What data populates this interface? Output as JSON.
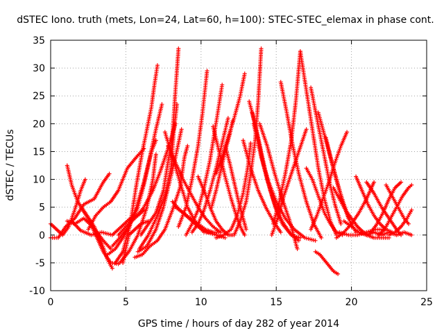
{
  "chart_data": {
    "type": "scatter",
    "title": "dSTEC Iono. truth (mets, Lon=24, Lat=60, h=100): STEC-STEC_elemax in phase cont.",
    "xlabel": "GPS time / hours of day 282 of year 2014",
    "ylabel": "dSTEC  / TECUs",
    "xlim": [
      0,
      25
    ],
    "ylim": [
      -10,
      35
    ],
    "xticks": [
      "0",
      "5",
      "10",
      "15",
      "20",
      "25"
    ],
    "yticks": [
      "-10",
      "-5",
      "0",
      "5",
      "10",
      "15",
      "20",
      "25",
      "30",
      "35"
    ],
    "grid": true,
    "marker": "plus",
    "color": "#ff0000",
    "series": [
      {
        "x": [
          0.0,
          0.4,
          0.8,
          1.2,
          1.6,
          2.0,
          2.3
        ],
        "y": [
          2.0,
          1.0,
          0.0,
          1.5,
          4.5,
          8.0,
          10.0
        ]
      },
      {
        "x": [
          0.0,
          0.5,
          1.0,
          1.6,
          2.2,
          2.9,
          3.5,
          3.9
        ],
        "y": [
          -0.5,
          -0.5,
          1.5,
          3.0,
          5.5,
          6.5,
          9.5,
          11.0
        ]
      },
      {
        "x": [
          1.1,
          1.4,
          1.8,
          2.3,
          2.9,
          3.4,
          3.8,
          4.1
        ],
        "y": [
          12.5,
          9.0,
          6.0,
          4.0,
          1.5,
          -1.5,
          -4.5,
          -6.0
        ]
      },
      {
        "x": [
          1.1,
          1.6,
          2.2,
          2.8,
          3.5,
          4.0
        ],
        "y": [
          2.5,
          2.0,
          3.0,
          1.5,
          -1.0,
          -2.5
        ]
      },
      {
        "x": [
          1.4,
          2.0,
          2.7,
          3.4,
          4.1,
          4.7,
          5.3,
          5.8,
          6.2
        ],
        "y": [
          2.5,
          0.8,
          0.0,
          0.5,
          0.0,
          1.5,
          3.0,
          3.5,
          4.5
        ]
      },
      {
        "x": [
          2.0,
          2.5,
          3.0,
          3.5,
          4.0,
          4.5
        ],
        "y": [
          5.0,
          3.0,
          0.0,
          -3.0,
          -5.0,
          -5.2
        ]
      },
      {
        "x": [
          2.5,
          3.0,
          3.5,
          4.0,
          4.5,
          5.1,
          5.7,
          6.2
        ],
        "y": [
          1.0,
          3.5,
          5.0,
          6.0,
          8.0,
          12.0,
          14.0,
          15.5
        ]
      },
      {
        "x": [
          3.8,
          4.3,
          4.8,
          5.3,
          5.8,
          6.2,
          6.7,
          7.0
        ],
        "y": [
          -3.5,
          -2.5,
          -0.5,
          2.0,
          5.0,
          9.0,
          15.0,
          17.0
        ]
      },
      {
        "x": [
          4.6,
          5.2,
          5.8,
          6.4,
          6.8,
          7.0
        ],
        "y": [
          -5.0,
          -3.0,
          0.0,
          5.0,
          10.0,
          14.5
        ]
      },
      {
        "x": [
          4.5,
          5.0,
          5.6,
          6.2,
          6.8,
          7.3,
          7.8,
          8.3
        ],
        "y": [
          0.0,
          1.5,
          3.0,
          5.0,
          8.0,
          11.5,
          15.5,
          20.0
        ]
      },
      {
        "x": [
          4.8,
          5.2,
          5.6,
          6.0,
          6.5
        ],
        "y": [
          -5.0,
          0.0,
          1.0,
          2.0,
          2.5
        ]
      },
      {
        "x": [
          4.3,
          4.8,
          5.3,
          5.7,
          6.1,
          6.4,
          6.7,
          6.9,
          7.1
        ],
        "y": [
          -5.0,
          -3.0,
          2.0,
          9.0,
          15.0,
          19.0,
          23.0,
          27.0,
          30.5
        ]
      },
      {
        "x": [
          4.1,
          4.6,
          5.2,
          5.7,
          6.2,
          6.6,
          7.0,
          7.4
        ],
        "y": [
          -2.0,
          -0.5,
          1.5,
          5.0,
          9.5,
          14.0,
          19.0,
          23.5
        ]
      },
      {
        "x": [
          5.6,
          6.1,
          6.6,
          7.1,
          7.6,
          8.1,
          8.6,
          8.9,
          9.1
        ],
        "y": [
          -4.0,
          -3.5,
          -2.0,
          -1.0,
          1.0,
          4.5,
          8.5,
          14.0,
          16.0
        ]
      },
      {
        "x": [
          5.9,
          6.5,
          7.1,
          7.6,
          8.0,
          8.2,
          8.4
        ],
        "y": [
          -2.5,
          0.0,
          3.5,
          7.0,
          12.0,
          19.0,
          23.5
        ]
      },
      {
        "x": [
          6.0,
          6.5,
          7.0,
          7.5,
          7.8,
          8.1,
          8.3,
          8.5
        ],
        "y": [
          0.0,
          2.0,
          4.0,
          8.0,
          13.0,
          18.0,
          26.0,
          33.5
        ]
      },
      {
        "x": [
          5.8,
          6.4,
          7.0,
          7.5,
          7.9,
          8.3,
          8.7
        ],
        "y": [
          -3.0,
          -2.0,
          1.0,
          5.0,
          9.5,
          14.0,
          19.0
        ]
      },
      {
        "x": [
          7.6,
          8.1,
          8.6,
          9.1,
          9.7,
          10.2,
          10.6
        ],
        "y": [
          18.5,
          14.0,
          9.5,
          5.0,
          2.0,
          0.5,
          0.5
        ]
      },
      {
        "x": [
          7.8,
          8.3,
          8.8,
          9.3,
          9.8,
          10.3,
          10.8,
          11.3
        ],
        "y": [
          16.0,
          13.0,
          10.0,
          7.5,
          5.0,
          3.0,
          1.5,
          0.5
        ]
      },
      {
        "x": [
          8.1,
          8.6,
          9.2,
          9.8,
          10.4,
          11.0,
          11.6
        ],
        "y": [
          6.0,
          4.5,
          3.0,
          1.5,
          0.5,
          0.0,
          -0.5
        ]
      },
      {
        "x": [
          8.3,
          8.8,
          9.3,
          9.8,
          10.3,
          10.8,
          11.3
        ],
        "y": [
          5.0,
          4.0,
          3.0,
          2.0,
          1.0,
          0.5,
          0.5
        ]
      },
      {
        "x": [
          9.0,
          9.4,
          9.8,
          10.2,
          10.6,
          10.9,
          11.2,
          11.4
        ],
        "y": [
          0.0,
          2.0,
          4.5,
          8.5,
          13.5,
          18.5,
          23.5,
          27.0
        ]
      },
      {
        "x": [
          8.5,
          9.0,
          9.4,
          9.8,
          10.1,
          10.4
        ],
        "y": [
          1.5,
          5.0,
          10.0,
          16.0,
          22.0,
          29.5
        ]
      },
      {
        "x": [
          9.4,
          9.8,
          10.2,
          10.6,
          11.0,
          11.4,
          11.8
        ],
        "y": [
          0.5,
          2.0,
          4.5,
          8.0,
          12.0,
          16.5,
          21.0
        ]
      },
      {
        "x": [
          9.8,
          10.2,
          10.6,
          11.0,
          11.4,
          11.8,
          12.1
        ],
        "y": [
          10.5,
          8.0,
          5.0,
          2.5,
          1.0,
          0.0,
          0.0
        ]
      },
      {
        "x": [
          11.0,
          11.5,
          12.0,
          12.4,
          12.8,
          13.1,
          13.3
        ],
        "y": [
          -0.5,
          0.0,
          1.0,
          3.5,
          7.5,
          12.0,
          16.5
        ]
      },
      {
        "x": [
          10.8,
          11.2,
          11.6,
          12.0,
          12.4,
          12.7,
          12.9
        ],
        "y": [
          19.5,
          15.0,
          10.5,
          6.5,
          3.0,
          1.0,
          0.0
        ]
      },
      {
        "x": [
          11.0,
          11.4,
          11.8,
          12.2,
          12.6,
          12.9
        ],
        "y": [
          11.0,
          14.0,
          17.5,
          21.0,
          25.0,
          29.0
        ]
      },
      {
        "x": [
          10.7,
          11.0,
          11.3,
          11.6,
          11.9,
          12.1
        ],
        "y": [
          5.0,
          8.0,
          11.5,
          15.0,
          18.0,
          20.5
        ]
      },
      {
        "x": [
          11.6,
          11.9,
          12.2,
          12.5,
          12.8,
          13.0
        ],
        "y": [
          16.0,
          13.0,
          9.5,
          6.0,
          3.0,
          1.0
        ]
      },
      {
        "x": [
          12.2,
          12.6,
          13.0,
          13.3,
          13.6,
          13.8,
          14.0
        ],
        "y": [
          0.0,
          2.5,
          6.0,
          11.0,
          17.0,
          24.0,
          33.5
        ]
      },
      {
        "x": [
          13.2,
          13.6,
          14.0,
          14.4,
          14.9,
          15.4,
          16.0,
          16.6
        ],
        "y": [
          24.0,
          20.0,
          15.0,
          10.0,
          5.5,
          2.0,
          0.0,
          -0.5
        ]
      },
      {
        "x": [
          13.4,
          13.8,
          14.2,
          14.6,
          15.0,
          15.5,
          16.0,
          16.5
        ],
        "y": [
          22.0,
          17.0,
          12.0,
          8.0,
          4.5,
          2.0,
          0.0,
          -1.0
        ]
      },
      {
        "x": [
          12.8,
          13.3,
          13.8,
          14.3,
          14.8,
          15.3
        ],
        "y": [
          17.0,
          12.0,
          8.0,
          5.0,
          2.5,
          0.5
        ]
      },
      {
        "x": [
          13.5,
          14.0,
          14.5,
          15.0,
          15.6,
          16.2,
          16.9,
          17.6
        ],
        "y": [
          20.0,
          14.0,
          9.5,
          6.0,
          3.0,
          1.0,
          -0.5,
          -1.0
        ]
      },
      {
        "x": [
          13.9,
          14.4,
          14.9,
          15.4,
          15.9,
          16.4
        ],
        "y": [
          20.0,
          16.0,
          11.0,
          6.5,
          2.5,
          -2.5
        ]
      },
      {
        "x": [
          14.7,
          15.1,
          15.5,
          16.0,
          16.5,
          17.0
        ],
        "y": [
          0.0,
          3.0,
          7.0,
          11.0,
          15.0,
          19.0
        ]
      },
      {
        "x": [
          15.3,
          15.7,
          16.1,
          16.5,
          17.0,
          17.5,
          18.0
        ],
        "y": [
          27.5,
          22.0,
          16.0,
          11.0,
          6.0,
          2.0,
          -0.5
        ]
      },
      {
        "x": [
          14.8,
          15.2,
          15.6,
          16.0,
          16.3,
          16.6
        ],
        "y": [
          2.0,
          6.0,
          11.0,
          17.0,
          24.0,
          33.0
        ]
      },
      {
        "x": [
          16.6,
          17.0,
          17.4,
          17.8,
          18.2,
          18.6,
          19.0
        ],
        "y": [
          33.0,
          26.0,
          19.0,
          12.0,
          6.5,
          2.5,
          0.0
        ]
      },
      {
        "x": [
          17.0,
          17.4,
          17.8,
          18.2,
          18.6,
          19.0,
          19.4
        ],
        "y": [
          12.0,
          10.0,
          7.0,
          4.0,
          2.0,
          0.5,
          0.0
        ]
      },
      {
        "x": [
          17.3,
          17.7,
          18.1,
          18.5,
          18.9,
          19.3
        ],
        "y": [
          26.5,
          21.0,
          15.5,
          10.0,
          5.5,
          2.0
        ]
      },
      {
        "x": [
          17.3,
          17.7,
          18.1,
          18.5,
          18.9,
          19.3,
          19.7
        ],
        "y": [
          1.0,
          3.5,
          6.5,
          9.5,
          13.0,
          16.0,
          18.5
        ]
      },
      {
        "x": [
          17.6,
          17.9,
          18.2,
          18.5,
          18.8,
          19.1
        ],
        "y": [
          -3.0,
          -3.5,
          -4.5,
          -5.5,
          -6.5,
          -7.0
        ]
      },
      {
        "x": [
          17.8,
          18.2,
          18.6,
          19.0,
          19.4,
          19.8
        ],
        "y": [
          22.0,
          18.0,
          14.0,
          10.0,
          6.0,
          3.0
        ]
      },
      {
        "x": [
          18.3,
          18.7,
          19.1,
          19.5,
          19.9,
          20.3
        ],
        "y": [
          17.5,
          13.0,
          9.0,
          5.5,
          2.5,
          0.5
        ]
      },
      {
        "x": [
          18.8,
          19.2,
          19.6,
          20.0,
          20.4,
          20.8,
          21.2
        ],
        "y": [
          8.5,
          6.5,
          4.5,
          3.0,
          1.5,
          0.5,
          0.0
        ]
      },
      {
        "x": [
          19.0,
          19.5,
          20.0,
          20.5,
          21.0,
          21.5
        ],
        "y": [
          -0.5,
          0.5,
          2.0,
          4.0,
          6.5,
          9.5
        ]
      },
      {
        "x": [
          19.2,
          19.8,
          20.4,
          21.0,
          21.6,
          22.2
        ],
        "y": [
          0.5,
          0.0,
          0.0,
          0.5,
          1.0,
          1.0
        ]
      },
      {
        "x": [
          20.3,
          20.7,
          21.1,
          21.5,
          21.9,
          22.3,
          22.7
        ],
        "y": [
          10.5,
          8.0,
          5.5,
          3.5,
          2.0,
          1.0,
          0.5
        ]
      },
      {
        "x": [
          19.5,
          20.0,
          20.5,
          21.0,
          21.5,
          22.0,
          22.5
        ],
        "y": [
          2.5,
          1.5,
          0.5,
          0.0,
          -0.5,
          -0.5,
          -0.5
        ]
      },
      {
        "x": [
          21.0,
          21.5,
          22.0,
          22.5,
          23.0,
          23.3
        ],
        "y": [
          9.5,
          7.5,
          5.0,
          3.0,
          1.0,
          0.0
        ]
      },
      {
        "x": [
          21.3,
          21.7,
          22.1,
          22.5,
          22.9,
          23.3
        ],
        "y": [
          0.5,
          2.0,
          4.0,
          6.5,
          8.5,
          9.5
        ]
      },
      {
        "x": [
          21.8,
          22.2,
          22.6,
          23.0,
          23.4,
          23.8,
          24.0
        ],
        "y": [
          0.0,
          1.0,
          3.0,
          5.0,
          7.0,
          8.5,
          9.0
        ]
      },
      {
        "x": [
          22.3,
          22.7,
          23.1,
          23.5,
          23.8
        ],
        "y": [
          9.0,
          7.0,
          5.0,
          3.0,
          2.0
        ]
      },
      {
        "x": [
          22.5,
          22.9,
          23.3,
          23.7,
          24.0
        ],
        "y": [
          0.0,
          0.5,
          1.5,
          3.0,
          4.5
        ]
      },
      {
        "x": [
          20.5,
          21.0,
          21.5,
          22.0,
          22.5,
          23.0,
          23.5,
          24.0
        ],
        "y": [
          0.5,
          0.0,
          0.5,
          0.0,
          0.5,
          0.0,
          0.5,
          0.0
        ]
      }
    ]
  }
}
